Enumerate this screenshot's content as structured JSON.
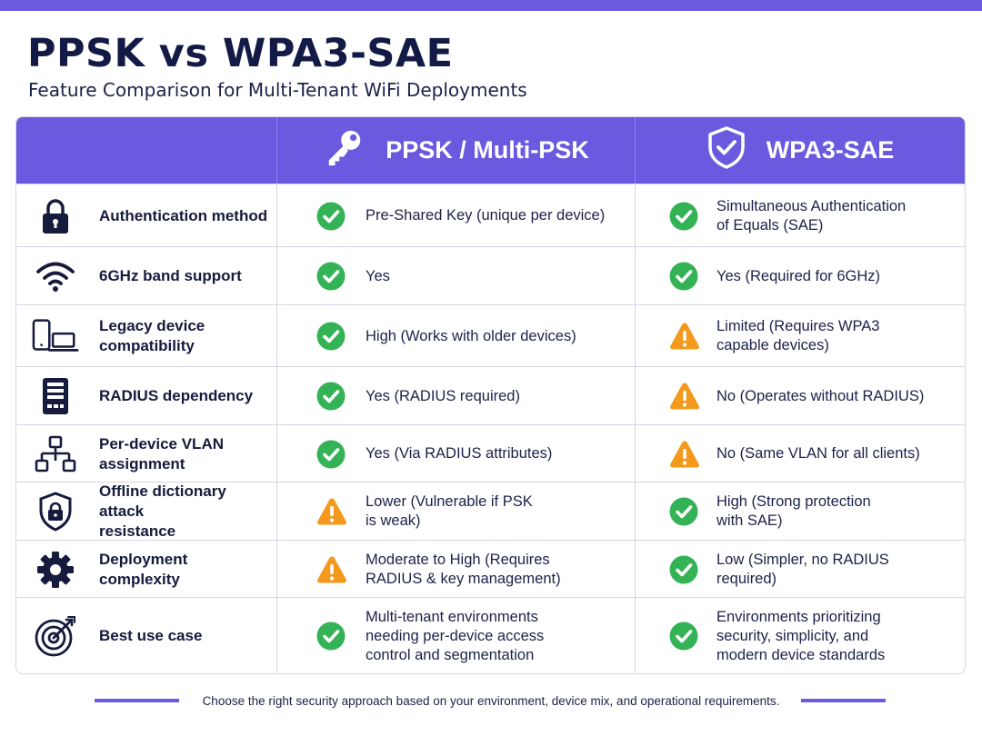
{
  "title": "PPSK vs WPA3-SAE",
  "subtitle": "Feature Comparison for Multi-Tenant WiFi Deployments",
  "columns": {
    "ppsk": {
      "label": "PPSK / Multi-PSK",
      "icon": "key-icon"
    },
    "wpa3": {
      "label": "WPA3-SAE",
      "icon": "shield-check-icon"
    }
  },
  "colors": {
    "accent": "#6b5ae0",
    "check": "#34b356",
    "warning": "#f39a1e"
  },
  "rows": [
    {
      "feature": "Authentication method",
      "icon": "lock-icon",
      "ppsk": {
        "text": "Pre-Shared Key (unique per device)",
        "status": "check"
      },
      "wpa3": {
        "text": "Simultaneous Authentication\nof Equals (SAE)",
        "status": "check"
      }
    },
    {
      "feature": "6GHz band support",
      "icon": "wifi-icon",
      "ppsk": {
        "text": "Yes",
        "status": "check"
      },
      "wpa3": {
        "text": "Yes (Required for 6GHz)",
        "status": "check"
      }
    },
    {
      "feature": "Legacy device\ncompatibility",
      "icon": "devices-icon",
      "ppsk": {
        "text": "High (Works with older devices)",
        "status": "check"
      },
      "wpa3": {
        "text": "Limited (Requires WPA3\ncapable devices)",
        "status": "warning"
      }
    },
    {
      "feature": "RADIUS dependency",
      "icon": "server-icon",
      "ppsk": {
        "text": "Yes (RADIUS required)",
        "status": "check"
      },
      "wpa3": {
        "text": "No (Operates without RADIUS)",
        "status": "warning"
      }
    },
    {
      "feature": "Per-device VLAN\nassignment",
      "icon": "network-icon",
      "ppsk": {
        "text": "Yes (Via RADIUS attributes)",
        "status": "check"
      },
      "wpa3": {
        "text": "No (Same VLAN for all clients)",
        "status": "warning"
      }
    },
    {
      "feature": "Offline dictionary attack\nresistance",
      "icon": "shield-lock-icon",
      "ppsk": {
        "text": "Lower (Vulnerable if PSK\nis weak)",
        "status": "warning"
      },
      "wpa3": {
        "text": "High (Strong protection\nwith SAE)",
        "status": "check"
      }
    },
    {
      "feature": "Deployment complexity",
      "icon": "gear-icon",
      "ppsk": {
        "text": "Moderate to High (Requires\nRADIUS & key management)",
        "status": "warning"
      },
      "wpa3": {
        "text": "Low (Simpler, no RADIUS\nrequired)",
        "status": "check"
      }
    },
    {
      "feature": "Best use case",
      "icon": "target-icon",
      "ppsk": {
        "text": "Multi-tenant environments\nneeding per-device access\ncontrol and segmentation",
        "status": "check"
      },
      "wpa3": {
        "text": "Environments prioritizing\nsecurity, simplicity, and\nmodern device standards",
        "status": "check"
      }
    }
  ],
  "footer": "Choose the right security approach based on your environment, device mix, and operational requirements."
}
